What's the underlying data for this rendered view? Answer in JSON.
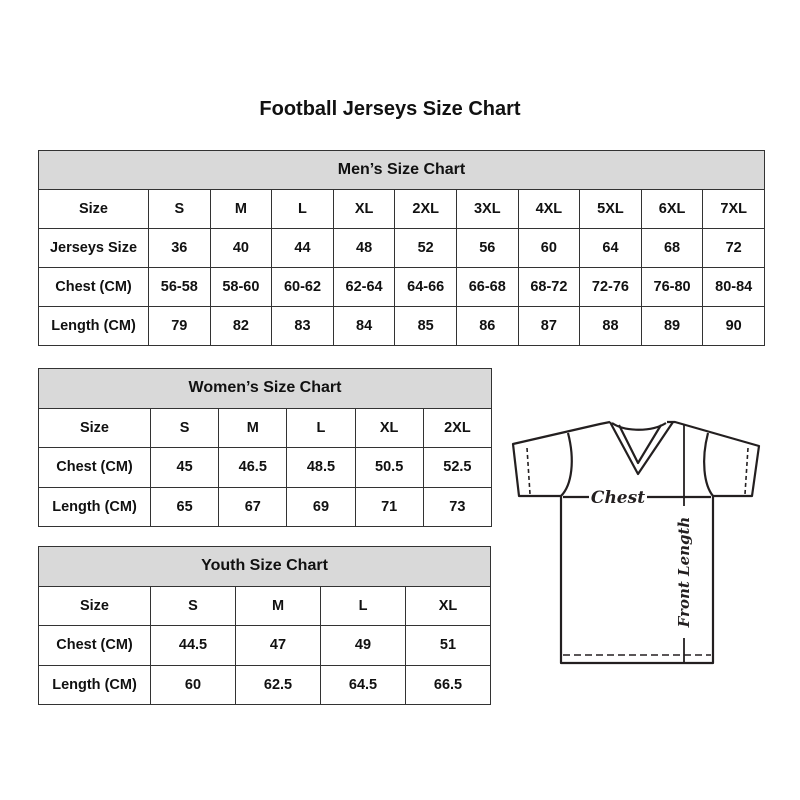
{
  "title": "Football Jerseys Size Chart",
  "men": {
    "heading": "Men’s Size Chart",
    "rows": [
      {
        "label": "Size",
        "values": [
          "S",
          "M",
          "L",
          "XL",
          "2XL",
          "3XL",
          "4XL",
          "5XL",
          "6XL",
          "7XL"
        ]
      },
      {
        "label": "Jerseys Size",
        "values": [
          "36",
          "40",
          "44",
          "48",
          "52",
          "56",
          "60",
          "64",
          "68",
          "72"
        ]
      },
      {
        "label": "Chest (CM)",
        "values": [
          "56-58",
          "58-60",
          "60-62",
          "62-64",
          "64-66",
          "66-68",
          "68-72",
          "72-76",
          "76-80",
          "80-84"
        ]
      },
      {
        "label": "Length (CM)",
        "values": [
          "79",
          "82",
          "83",
          "84",
          "85",
          "86",
          "87",
          "88",
          "89",
          "90"
        ]
      }
    ]
  },
  "women": {
    "heading": "Women’s Size Chart",
    "rows": [
      {
        "label": "Size",
        "values": [
          "S",
          "M",
          "L",
          "XL",
          "2XL"
        ]
      },
      {
        "label": "Chest (CM)",
        "values": [
          "45",
          "46.5",
          "48.5",
          "50.5",
          "52.5"
        ]
      },
      {
        "label": "Length (CM)",
        "values": [
          "65",
          "67",
          "69",
          "71",
          "73"
        ]
      }
    ]
  },
  "youth": {
    "heading": "Youth Size Chart",
    "rows": [
      {
        "label": "Size",
        "values": [
          "S",
          "M",
          "L",
          "XL"
        ]
      },
      {
        "label": "Chest (CM)",
        "values": [
          "44.5",
          "47",
          "49",
          "51"
        ]
      },
      {
        "label": "Length (CM)",
        "values": [
          "60",
          "62.5",
          "64.5",
          "66.5"
        ]
      }
    ]
  },
  "diagram": {
    "chest_label": "Chest",
    "length_label": "Front Length"
  },
  "colors": {
    "header_bg": "#d9d9d9",
    "line": "#231f20"
  }
}
